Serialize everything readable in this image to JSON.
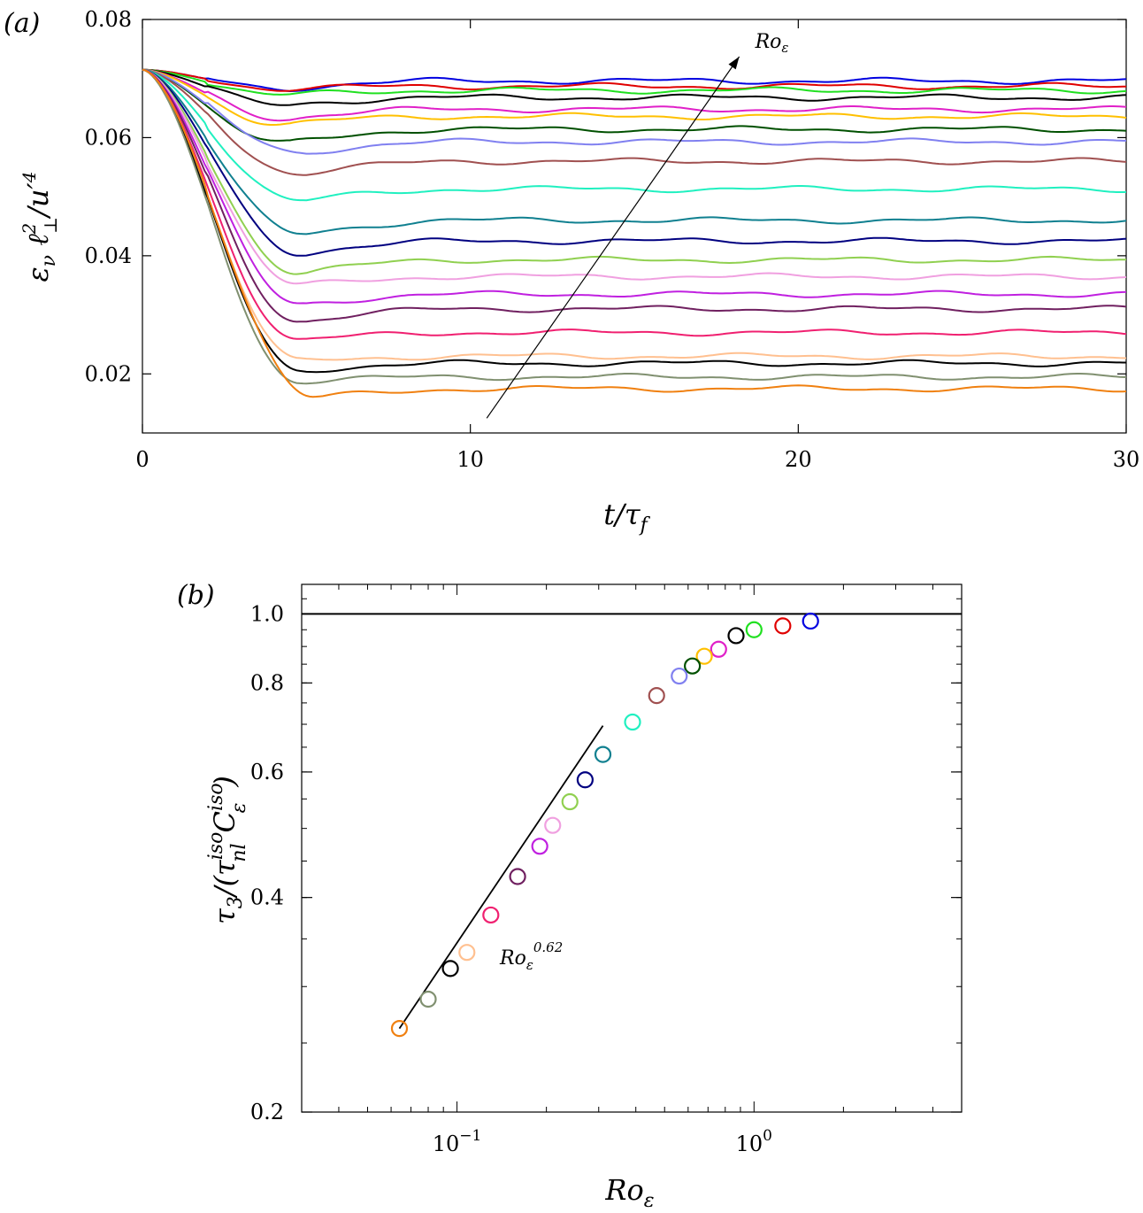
{
  "chart_data": [
    {
      "type": "line",
      "panel_label": "(a)",
      "xlabel": "t/τ_f",
      "ylabel": "ε_ν ℓ⊥² / u′⁴",
      "xlim": [
        0,
        30
      ],
      "ylim": [
        0.01,
        0.08
      ],
      "xticks": [
        0,
        10,
        20,
        30
      ],
      "xtick_labels": [
        "0",
        "10",
        "20",
        "30"
      ],
      "yticks": [
        0.02,
        0.04,
        0.06,
        0.08
      ],
      "ytick_labels": [
        "0.02",
        "0.04",
        "0.06",
        "0.08"
      ],
      "grid": false,
      "legend": "none",
      "initial_value": 0.0715,
      "annotation": {
        "text": "Ro_ε",
        "arrow_from": [
          10.5,
          0.0125
        ],
        "arrow_to": [
          18.2,
          0.0737
        ]
      },
      "series": [
        {
          "color": "#0000e0",
          "min_t": 4.5,
          "min_value": 0.0683,
          "plateau": 0.0696
        },
        {
          "color": "#e00000",
          "min_t": 4.5,
          "min_value": 0.0683,
          "plateau": 0.0687
        },
        {
          "color": "#20e020",
          "min_t": 4.5,
          "min_value": 0.0672,
          "plateau": 0.068
        },
        {
          "color": "#000000",
          "min_t": 4.5,
          "min_value": 0.0655,
          "plateau": 0.0668
        },
        {
          "color": "#e020c8",
          "min_t": 4.5,
          "min_value": 0.0633,
          "plateau": 0.0648
        },
        {
          "color": "#ffc000",
          "min_t": 4.5,
          "min_value": 0.0623,
          "plateau": 0.0636
        },
        {
          "color": "#005000",
          "min_t": 4.5,
          "min_value": 0.059,
          "plateau": 0.0614
        },
        {
          "color": "#8080f0",
          "min_t": 5.0,
          "min_value": 0.0575,
          "plateau": 0.0593
        },
        {
          "color": "#a05050",
          "min_t": 5.0,
          "min_value": 0.054,
          "plateau": 0.056
        },
        {
          "color": "#20f0c0",
          "min_t": 5.0,
          "min_value": 0.0493,
          "plateau": 0.0513
        },
        {
          "color": "#108090",
          "min_t": 5.0,
          "min_value": 0.0437,
          "plateau": 0.046
        },
        {
          "color": "#000080",
          "min_t": 5.0,
          "min_value": 0.0405,
          "plateau": 0.0425
        },
        {
          "color": "#90d050",
          "min_t": 5.0,
          "min_value": 0.0372,
          "plateau": 0.0393
        },
        {
          "color": "#f0a0e0",
          "min_t": 5.0,
          "min_value": 0.035,
          "plateau": 0.0365
        },
        {
          "color": "#c020e0",
          "min_t": 5.0,
          "min_value": 0.0318,
          "plateau": 0.0335
        },
        {
          "color": "#702060",
          "min_t": 5.0,
          "min_value": 0.029,
          "plateau": 0.031
        },
        {
          "color": "#f02070",
          "min_t": 5.0,
          "min_value": 0.0257,
          "plateau": 0.027
        },
        {
          "color": "#ffc090",
          "min_t": 5.0,
          "min_value": 0.0222,
          "plateau": 0.023
        },
        {
          "color": "#000000",
          "min_t": 5.0,
          "min_value": 0.0206,
          "plateau": 0.0218
        },
        {
          "color": "#809070",
          "min_t": 5.0,
          "min_value": 0.0188,
          "plateau": 0.0195
        },
        {
          "color": "#f08010",
          "min_t": 5.5,
          "min_value": 0.016,
          "plateau": 0.0175
        }
      ]
    },
    {
      "type": "scatter",
      "panel_label": "(b)",
      "xlabel": "Ro_ε",
      "ylabel": "τ_3/(τ_nl^iso C_ε^iso)",
      "xscale": "log",
      "yscale": "log",
      "xlim": [
        0.03,
        5
      ],
      "ylim": [
        0.2,
        1.1
      ],
      "xtick_major": [
        0.1,
        1
      ],
      "xtick_labels": [
        "10^{-1}",
        "10^{0}"
      ],
      "yticks": [
        0.2,
        0.4,
        0.6,
        0.8,
        1.0
      ],
      "ytick_labels": [
        "0.2",
        "0.4",
        "0.6",
        "0.8",
        "1.0"
      ],
      "hline": 1.0,
      "grid": false,
      "legend": "none",
      "fit": {
        "label_base": "Ro",
        "label_sub": "ε",
        "label_exp": "0.62",
        "exponent": 0.62,
        "x_range": [
          0.064,
          0.31
        ],
        "y_start": 0.262
      },
      "points": [
        {
          "x": 1.55,
          "y": 0.977,
          "color": "#0000e0"
        },
        {
          "x": 1.25,
          "y": 0.962,
          "color": "#e00000"
        },
        {
          "x": 1.0,
          "y": 0.95,
          "color": "#20e020"
        },
        {
          "x": 0.87,
          "y": 0.932,
          "color": "#000000"
        },
        {
          "x": 0.76,
          "y": 0.892,
          "color": "#e020c8"
        },
        {
          "x": 0.68,
          "y": 0.872,
          "color": "#ffc000"
        },
        {
          "x": 0.62,
          "y": 0.845,
          "color": "#005000"
        },
        {
          "x": 0.56,
          "y": 0.818,
          "color": "#8080f0"
        },
        {
          "x": 0.47,
          "y": 0.768,
          "color": "#a05050"
        },
        {
          "x": 0.39,
          "y": 0.705,
          "color": "#20f0c0"
        },
        {
          "x": 0.31,
          "y": 0.635,
          "color": "#108090"
        },
        {
          "x": 0.27,
          "y": 0.585,
          "color": "#000080"
        },
        {
          "x": 0.24,
          "y": 0.545,
          "color": "#90d050"
        },
        {
          "x": 0.21,
          "y": 0.505,
          "color": "#f0a0e0"
        },
        {
          "x": 0.19,
          "y": 0.472,
          "color": "#c020e0"
        },
        {
          "x": 0.16,
          "y": 0.428,
          "color": "#702060"
        },
        {
          "x": 0.13,
          "y": 0.378,
          "color": "#f02070"
        },
        {
          "x": 0.108,
          "y": 0.335,
          "color": "#ffc090"
        },
        {
          "x": 0.095,
          "y": 0.318,
          "color": "#000000"
        },
        {
          "x": 0.08,
          "y": 0.288,
          "color": "#809070"
        },
        {
          "x": 0.064,
          "y": 0.262,
          "color": "#f08010"
        }
      ]
    }
  ]
}
